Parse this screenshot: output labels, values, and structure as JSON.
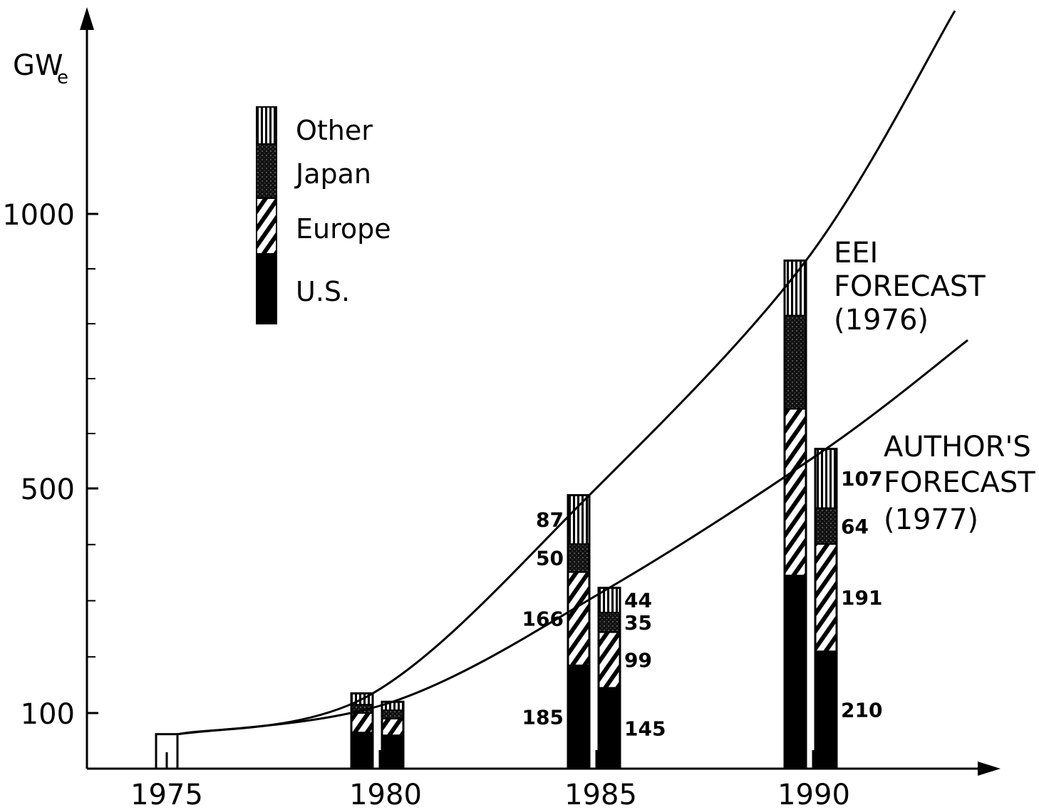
{
  "chart_data": {
    "type": "bar",
    "ylabel": "GWe",
    "ylabel_main": "GW",
    "ylabel_sub": "e",
    "x_ticks": [
      "1975",
      "1980",
      "1985",
      "1990"
    ],
    "y_ticks": [
      "100",
      "500",
      "1000"
    ],
    "y_tick_values": [
      100,
      500,
      1000
    ],
    "ylim": [
      0,
      1400
    ],
    "series_order": [
      "U.S.",
      "Europe",
      "Japan",
      "Other"
    ],
    "legend": [
      {
        "name": "Other",
        "pattern": "vertical-lines"
      },
      {
        "name": "Japan",
        "pattern": "dark-stipple"
      },
      {
        "name": "Europe",
        "pattern": "hatched"
      },
      {
        "name": "U.S.",
        "pattern": "solid"
      }
    ],
    "legend_placement": "top-left",
    "bars": [
      {
        "year": 1975,
        "group": "EEI",
        "total": 62,
        "segments": [],
        "labels": {}
      },
      {
        "year": 1980,
        "group": "EEI",
        "total": 135,
        "segments": [
          {
            "name": "U.S.",
            "value": 65
          },
          {
            "name": "Europe",
            "value": 35
          },
          {
            "name": "Japan",
            "value": 15
          },
          {
            "name": "Other",
            "value": 20
          }
        ],
        "labels": {}
      },
      {
        "year": 1980,
        "group": "Author",
        "total": 120,
        "segments": [
          {
            "name": "U.S.",
            "value": 60
          },
          {
            "name": "Europe",
            "value": 30
          },
          {
            "name": "Japan",
            "value": 15
          },
          {
            "name": "Other",
            "value": 15
          }
        ],
        "labels": {}
      },
      {
        "year": 1985,
        "group": "EEI",
        "total": 488,
        "segments": [
          {
            "name": "U.S.",
            "value": 185
          },
          {
            "name": "Europe",
            "value": 166
          },
          {
            "name": "Japan",
            "value": 50
          },
          {
            "name": "Other",
            "value": 87
          }
        ],
        "labels": {
          "U.S.": "185",
          "Europe": "166",
          "Japan": "50",
          "Other": "87"
        }
      },
      {
        "year": 1985,
        "group": "Author",
        "total": 323,
        "segments": [
          {
            "name": "U.S.",
            "value": 145
          },
          {
            "name": "Europe",
            "value": 99
          },
          {
            "name": "Japan",
            "value": 35
          },
          {
            "name": "Other",
            "value": 44
          }
        ],
        "labels": {
          "U.S.": "145",
          "Europe": "99",
          "Japan": "35",
          "Other": "44"
        }
      },
      {
        "year": 1990,
        "group": "EEI",
        "total": 915,
        "segments": [
          {
            "name": "U.S.",
            "value": 345
          },
          {
            "name": "Europe",
            "value": 300
          },
          {
            "name": "Japan",
            "value": 170
          },
          {
            "name": "Other",
            "value": 100
          }
        ],
        "labels": {}
      },
      {
        "year": 1990,
        "group": "Author",
        "total": 572,
        "segments": [
          {
            "name": "U.S.",
            "value": 210
          },
          {
            "name": "Europe",
            "value": 191
          },
          {
            "name": "Japan",
            "value": 64
          },
          {
            "name": "Other",
            "value": 107
          }
        ],
        "labels": {
          "U.S.": "210",
          "Europe": "191",
          "Japan": "64",
          "Other": "107"
        }
      }
    ],
    "curves": [
      {
        "name": "EEI FORECAST (1976)",
        "label_lines": [
          "EEI",
          "FORECAST",
          "(1976)"
        ],
        "x": [
          1975,
          1980,
          1985,
          1990,
          1992
        ],
        "y": [
          62,
          135,
          488,
          915,
          1370
        ]
      },
      {
        "name": "AUTHOR'S FORECAST (1977)",
        "label_lines": [
          "AUTHOR'S",
          "FORECAST",
          "(1977)"
        ],
        "x": [
          1975,
          1980,
          1985,
          1990,
          1992
        ],
        "y": [
          62,
          120,
          323,
          572,
          770
        ]
      }
    ]
  }
}
